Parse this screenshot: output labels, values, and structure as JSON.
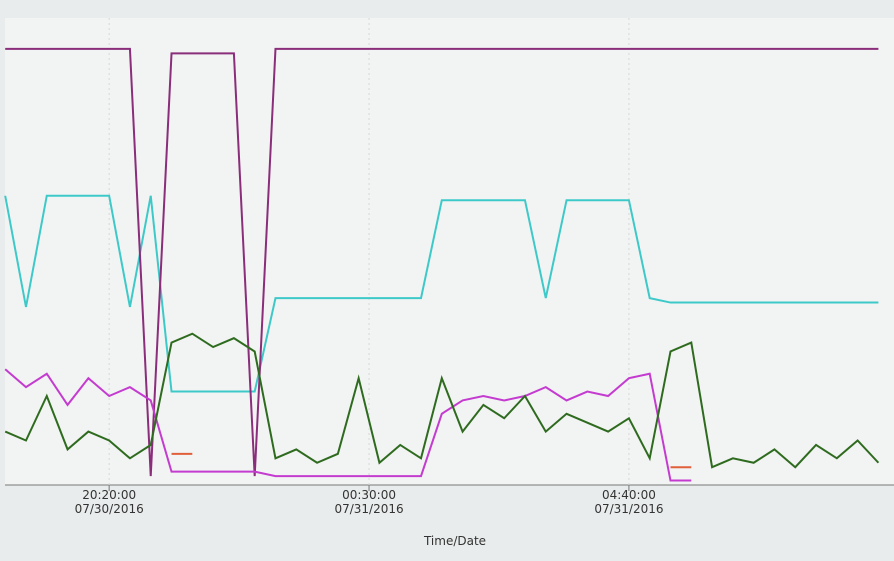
{
  "chart_data": {
    "type": "line",
    "x_label": "Time/Date",
    "x": [
      1120,
      1140,
      1160,
      1180,
      1200,
      1220,
      1240,
      1260,
      1280,
      1300,
      1320,
      1340,
      1360,
      1380,
      1400,
      1420,
      1440,
      1460,
      1480,
      1500,
      1520,
      1540,
      1560,
      1580,
      1600,
      1620,
      1640,
      1660,
      1680,
      1700,
      1720,
      1740,
      1760,
      1780,
      1800,
      1820,
      1840,
      1860,
      1880,
      1900,
      1920,
      1940,
      1960
    ],
    "xlim": [
      1115,
      1975
    ],
    "xticks": [
      {
        "value": 1220,
        "label": [
          "20:20:00",
          "07/30/2016"
        ]
      },
      {
        "value": 1470,
        "label": [
          "00:30:00",
          "07/31/2016"
        ]
      },
      {
        "value": 1720,
        "label": [
          "04:40:00",
          "07/31/2016"
        ]
      }
    ],
    "ylim": [
      0,
      100
    ],
    "series": [
      {
        "color": "#3ec9c9",
        "values": [
          65,
          40,
          65,
          65,
          65,
          65,
          40,
          65,
          21,
          21,
          21,
          21,
          21,
          42,
          42,
          42,
          42,
          42,
          42,
          42,
          42,
          64,
          64,
          64,
          64,
          64,
          42,
          64,
          64,
          64,
          64,
          42,
          41,
          41,
          41,
          41,
          41,
          41,
          41,
          41,
          41,
          41,
          41
        ]
      },
      {
        "color": "#8a2d7a",
        "values": [
          98,
          98,
          98,
          98,
          98,
          98,
          98,
          2,
          97,
          97,
          97,
          97,
          2,
          98,
          98,
          98,
          98,
          98,
          98,
          98,
          98,
          98,
          98,
          98,
          98,
          98,
          98,
          98,
          98,
          98,
          98,
          98,
          98,
          98,
          98,
          98,
          98,
          98,
          98,
          98,
          98,
          98,
          98
        ]
      },
      {
        "color": "#e0603a",
        "values": [
          null,
          null,
          null,
          null,
          null,
          null,
          null,
          null,
          7,
          7,
          null,
          null,
          null,
          null,
          null,
          null,
          null,
          null,
          null,
          null,
          null,
          null,
          null,
          null,
          null,
          null,
          null,
          null,
          null,
          null,
          null,
          null,
          4,
          4,
          null,
          null,
          null,
          null,
          null,
          null,
          null,
          null,
          null
        ]
      },
      {
        "color": "#c43bd0",
        "values": [
          26,
          22,
          25,
          18,
          24,
          20,
          22,
          19,
          3,
          3,
          3,
          3,
          3,
          2,
          2,
          2,
          2,
          2,
          2,
          2,
          2,
          16,
          19,
          20,
          19,
          20,
          22,
          19,
          21,
          20,
          24,
          25,
          1,
          1,
          null,
          null,
          null,
          null,
          null,
          null,
          null,
          null,
          null
        ]
      },
      {
        "color": "#2e6b1f",
        "values": [
          12,
          10,
          20,
          8,
          12,
          10,
          6,
          9,
          32,
          34,
          31,
          33,
          30,
          6,
          8,
          5,
          7,
          24,
          5,
          9,
          6,
          24,
          12,
          18,
          15,
          20,
          12,
          16,
          14,
          12,
          15,
          6,
          30,
          32,
          4,
          6,
          5,
          8,
          4,
          9,
          6,
          10,
          5
        ]
      }
    ]
  }
}
